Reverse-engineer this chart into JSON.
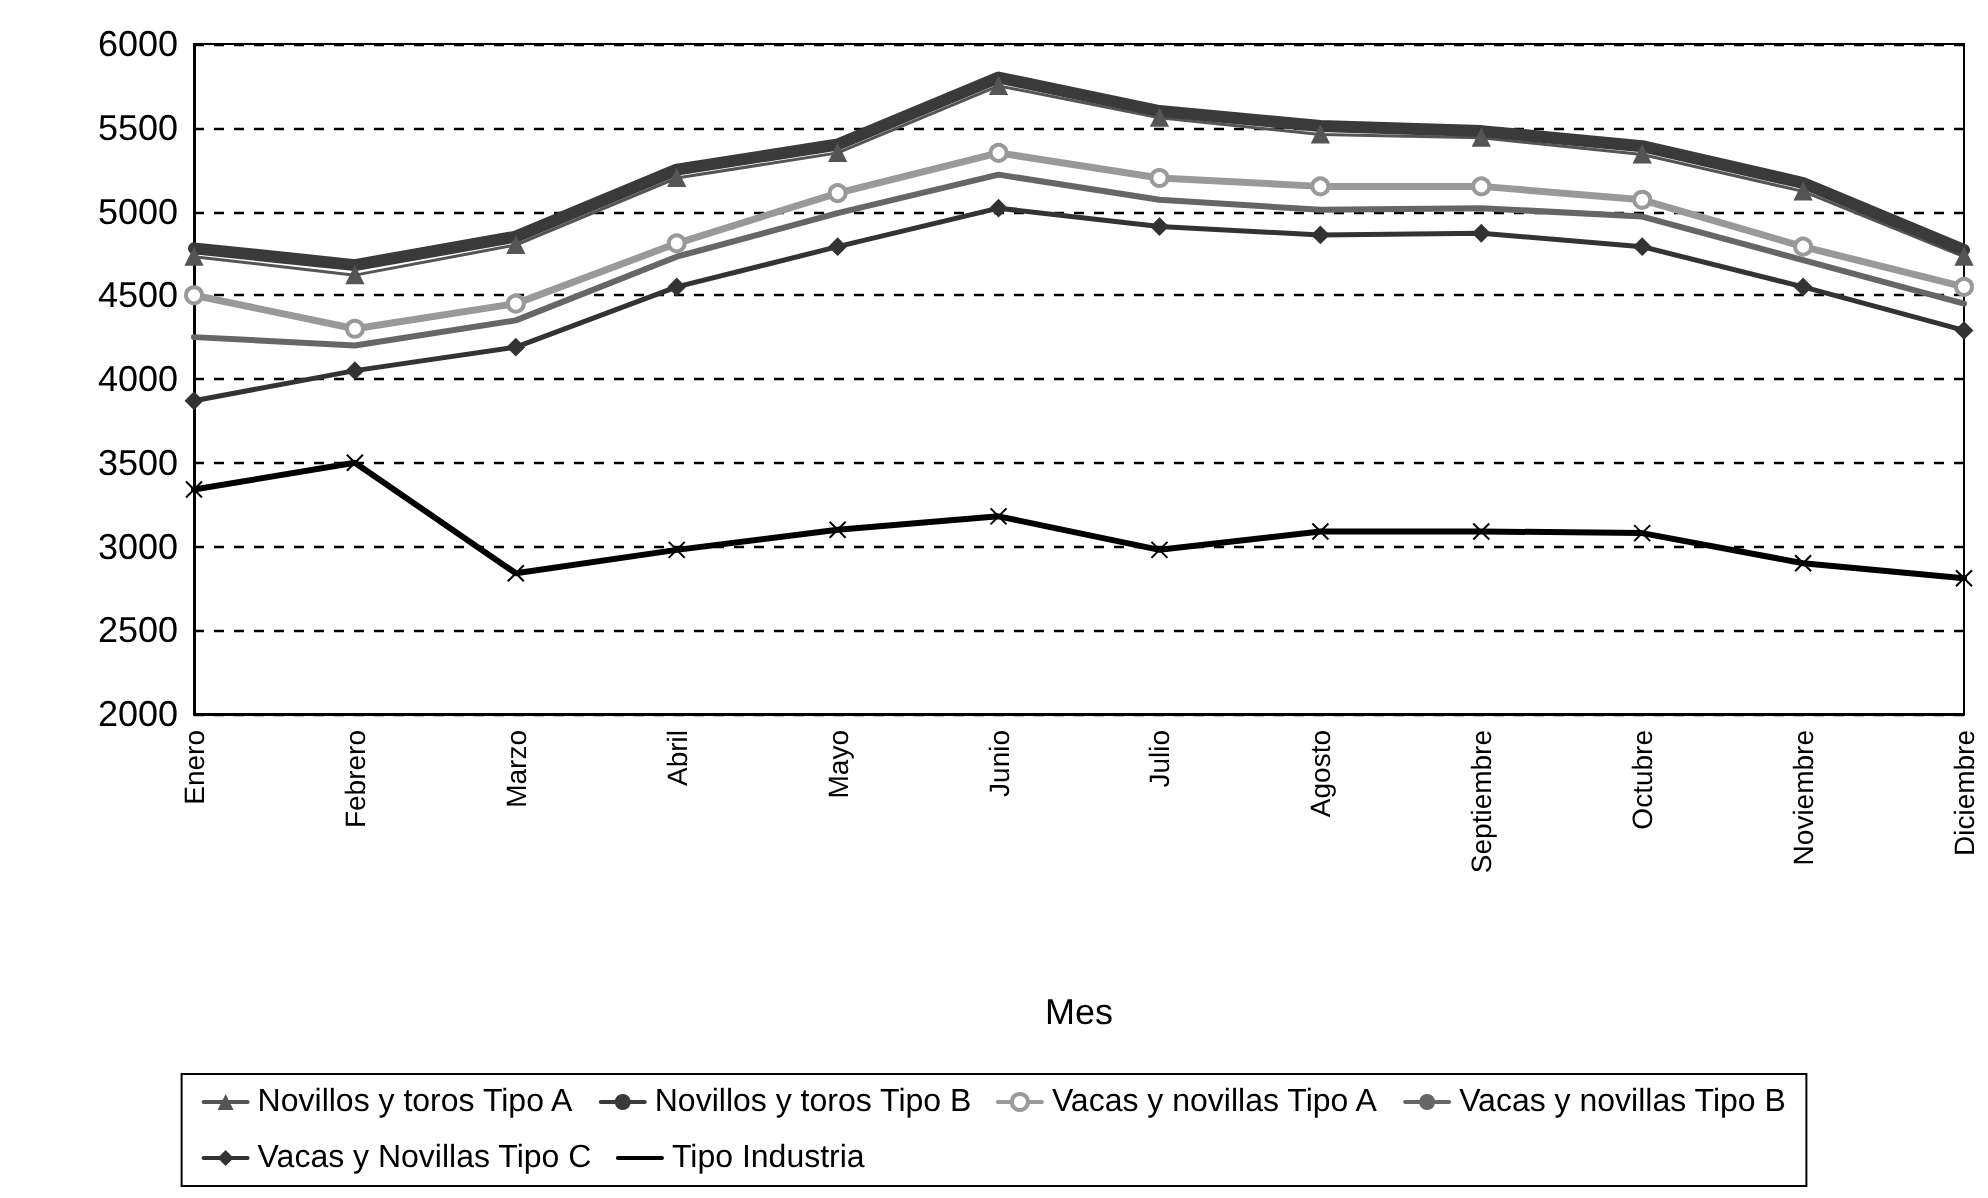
{
  "chart_data": {
    "type": "line",
    "xlabel": "Mes",
    "categories": [
      "Enero",
      "Febrero",
      "Marzo",
      "Abril",
      "Mayo",
      "Junio",
      "Julio",
      "Agosto",
      "Septiembre",
      "Octubre",
      "Noviembre",
      "Diciembre"
    ],
    "ylim": [
      2000,
      6000
    ],
    "yticks": [
      2000,
      2500,
      3000,
      3500,
      4000,
      4500,
      5000,
      5500,
      6000
    ],
    "grid": "y",
    "legend": "bottom",
    "series": [
      {
        "name": "Novillos y toros Tipo A",
        "color": "#555555",
        "marker": "triangle",
        "values": [
          4730,
          4620,
          4800,
          5200,
          5350,
          5750,
          5560,
          5460,
          5440,
          5340,
          5120,
          4730
        ]
      },
      {
        "name": "Novillos y toros Tipo B",
        "color": "#3a3a3a",
        "marker": "none",
        "values": [
          4780,
          4680,
          4850,
          5250,
          5400,
          5800,
          5600,
          5510,
          5480,
          5390,
          5170,
          4770
        ]
      },
      {
        "name": "Vacas y novillas Tipo A",
        "color": "#999999",
        "marker": "circle",
        "values": [
          4500,
          4300,
          4450,
          4810,
          5110,
          5350,
          5200,
          5150,
          5150,
          5070,
          4790,
          4550
        ]
      },
      {
        "name": "Vacas y novillas Tipo B",
        "color": "#666666",
        "marker": "none",
        "values": [
          4250,
          4200,
          4350,
          4730,
          4990,
          5220,
          5070,
          5010,
          5020,
          4970,
          4710,
          4450
        ]
      },
      {
        "name": "Vacas y Novillas Tipo C",
        "color": "#333333",
        "marker": "diamond",
        "values": [
          3870,
          4050,
          4190,
          4550,
          4790,
          5020,
          4910,
          4860,
          4870,
          4790,
          4550,
          4290
        ]
      },
      {
        "name": "Tipo Industria",
        "color": "#000000",
        "marker": "cross",
        "values": [
          3340,
          3500,
          2840,
          2980,
          3100,
          3180,
          2980,
          3090,
          3090,
          3080,
          2900,
          2810
        ]
      }
    ]
  }
}
